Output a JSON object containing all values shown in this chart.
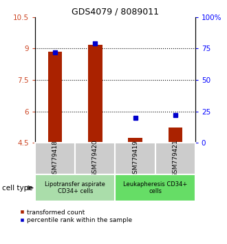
{
  "title": "GDS4079 / 8089011",
  "samples": [
    "GSM779418",
    "GSM779420",
    "GSM779419",
    "GSM779421"
  ],
  "red_values": [
    8.85,
    9.18,
    4.72,
    5.22
  ],
  "blue_values": [
    72,
    79,
    20,
    22
  ],
  "ylim_left": [
    4.5,
    10.5
  ],
  "ylim_right": [
    0,
    100
  ],
  "yticks_left": [
    4.5,
    6.0,
    7.5,
    9.0,
    10.5
  ],
  "ytick_labels_left": [
    "4.5",
    "6",
    "7.5",
    "9",
    "10.5"
  ],
  "yticks_right": [
    0,
    25,
    50,
    75,
    100
  ],
  "ytick_labels_right": [
    "0",
    "25",
    "50",
    "75",
    "100%"
  ],
  "hlines": [
    6.0,
    7.5,
    9.0
  ],
  "group1_label": "Lipotransfer aspirate\nCD34+ cells",
  "group2_label": "Leukapheresis CD34+\ncells",
  "cell_type_label": "cell type",
  "legend_red": "transformed count",
  "legend_blue": "percentile rank within the sample",
  "bar_color": "#aa2200",
  "dot_color": "#0000cc",
  "sample_bg": "#cccccc",
  "group1_bg": "#aaddaa",
  "group2_bg": "#66dd66",
  "bar_width": 0.35,
  "title_fontsize": 9,
  "tick_fontsize": 7.5,
  "sample_fontsize": 6.5,
  "group_fontsize": 6.0,
  "legend_fontsize": 6.5
}
